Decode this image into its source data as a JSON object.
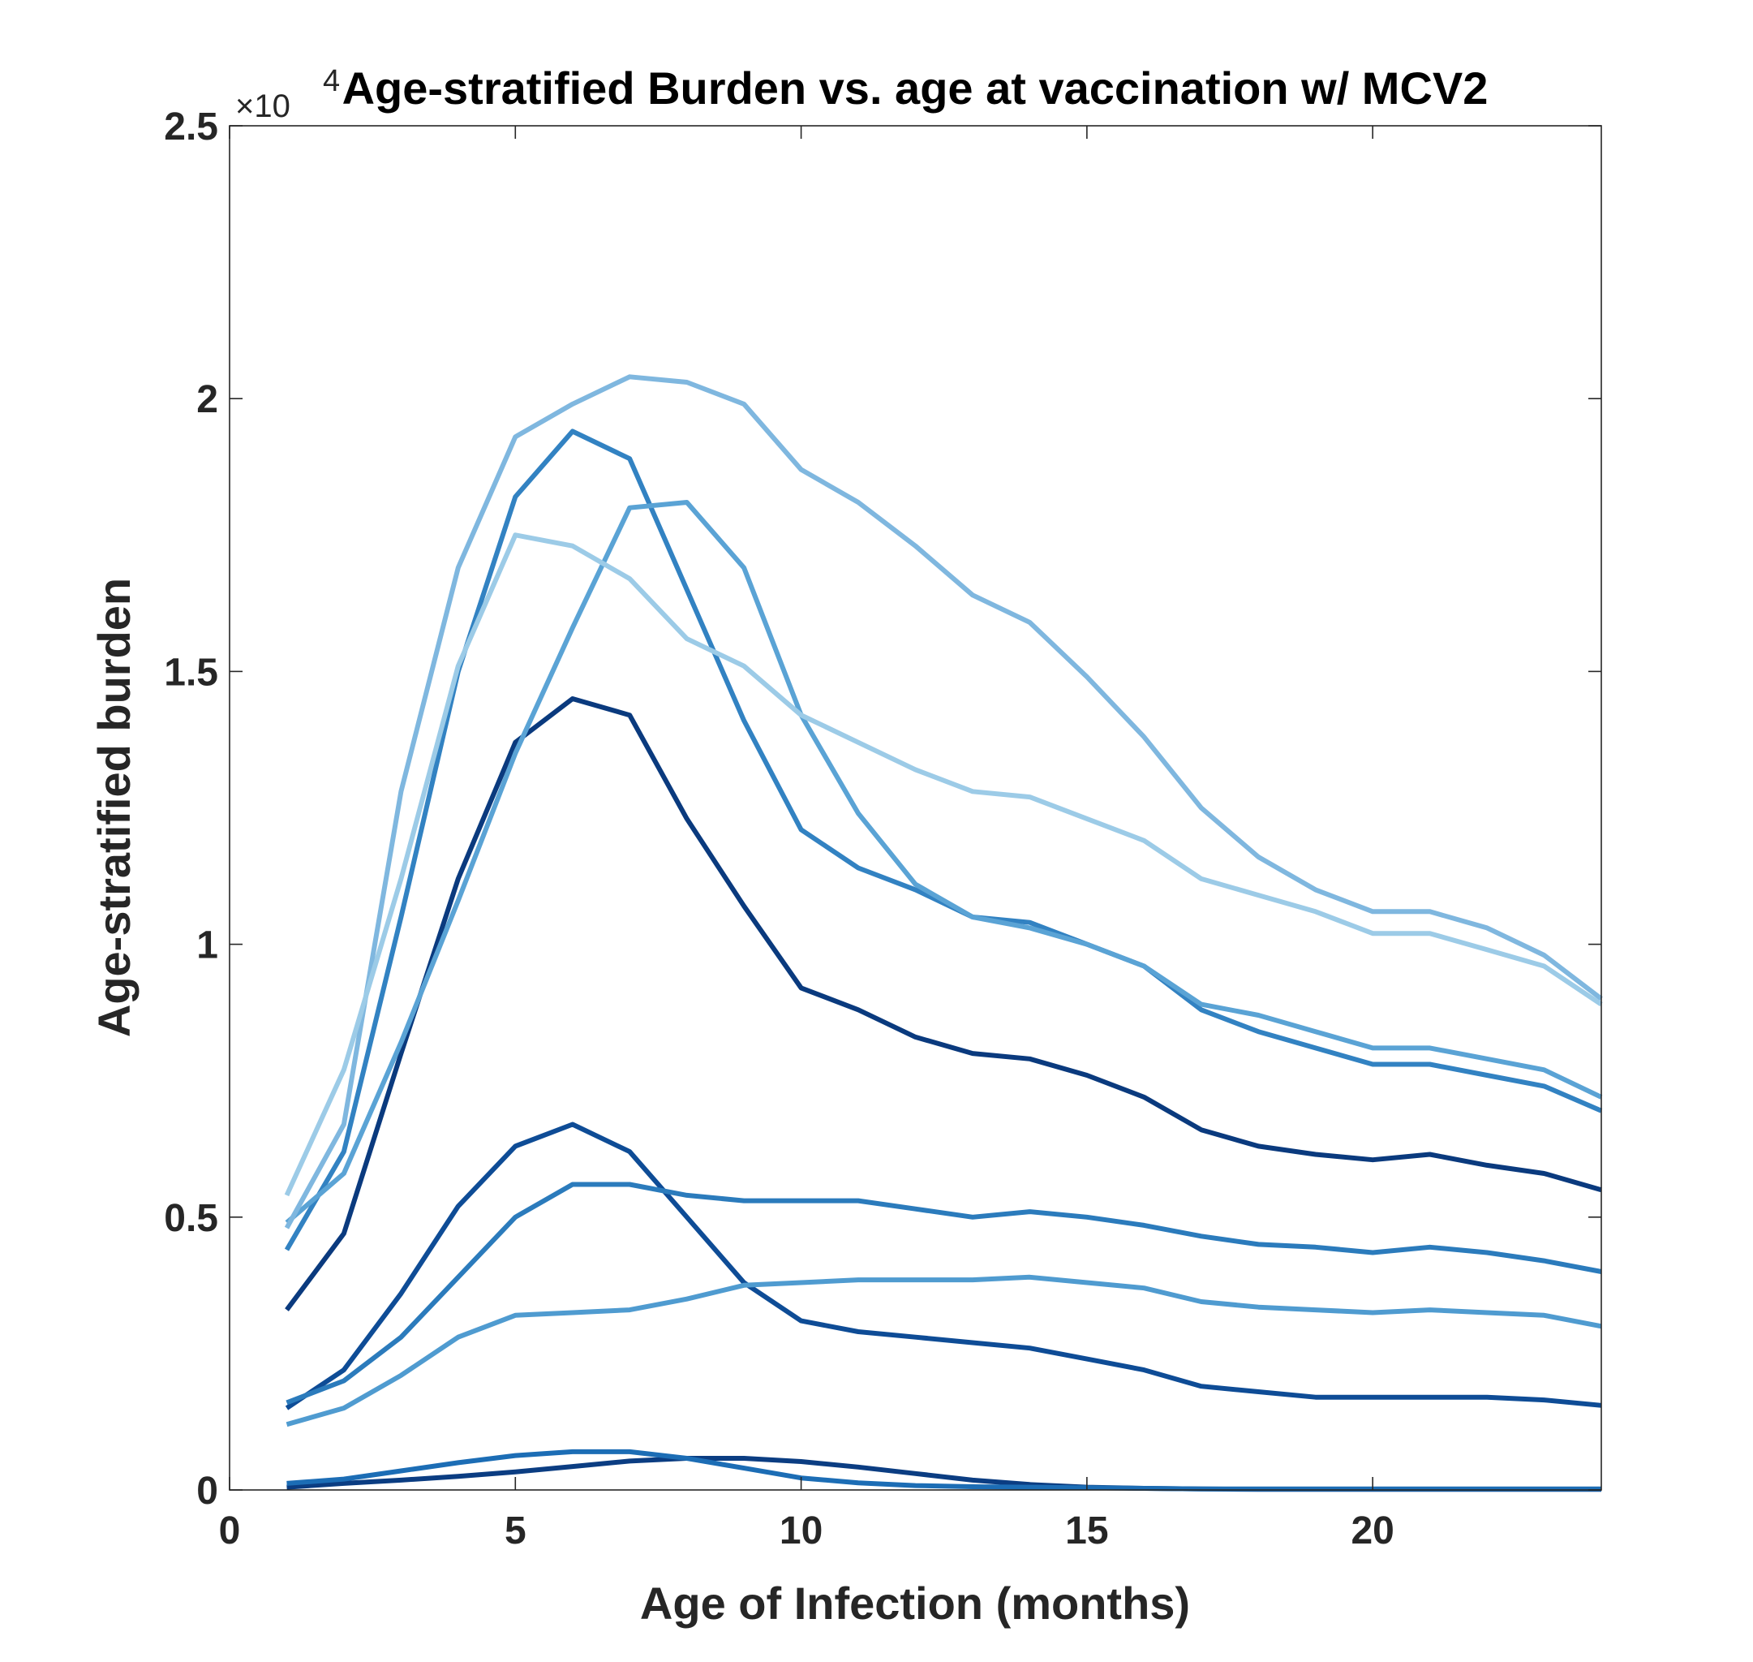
{
  "chart_data": {
    "type": "line",
    "title": "Age-stratified Burden vs. age at vaccination w/ MCV2",
    "xlabel": "Age of Infection (months)",
    "ylabel": "Age-stratified burden",
    "y_multiplier_label": {
      "base": "×10",
      "exponent": "4"
    },
    "xlim": [
      0,
      24
    ],
    "ylim": [
      0,
      2.5
    ],
    "xticks": [
      0,
      5,
      10,
      15,
      20
    ],
    "yticks": [
      0,
      0.5,
      1,
      1.5,
      2,
      2.5
    ],
    "xtick_labels": [
      "0",
      "5",
      "10",
      "15",
      "20"
    ],
    "ytick_labels": [
      "0",
      "0.5",
      "1",
      "1.5",
      "2",
      "2.5"
    ],
    "grid": false,
    "x": [
      1,
      2,
      3,
      4,
      5,
      6,
      7,
      8,
      9,
      10,
      11,
      12,
      13,
      14,
      15,
      16,
      17,
      18,
      19,
      20,
      21,
      22,
      23,
      24
    ],
    "series": [
      {
        "color": "#0b3d82",
        "values": [
          0.005,
          0.012,
          0.018,
          0.025,
          0.033,
          0.043,
          0.053,
          0.058,
          0.058,
          0.052,
          0.042,
          0.03,
          0.018,
          0.01,
          0.005,
          0.003,
          0.002,
          0.001,
          0.001,
          0.001,
          0.001,
          0.001,
          0.001,
          0.001
        ]
      },
      {
        "color": "#1c6db5",
        "values": [
          0.012,
          0.02,
          0.035,
          0.05,
          0.063,
          0.07,
          0.07,
          0.058,
          0.04,
          0.022,
          0.013,
          0.008,
          0.006,
          0.005,
          0.004,
          0.003,
          0.002,
          0.002,
          0.002,
          0.002,
          0.002,
          0.002,
          0.002,
          0.002
        ]
      },
      {
        "color": "#0e4c96",
        "values": [
          0.15,
          0.22,
          0.36,
          0.52,
          0.63,
          0.67,
          0.62,
          0.5,
          0.38,
          0.31,
          0.29,
          0.28,
          0.27,
          0.26,
          0.24,
          0.22,
          0.19,
          0.18,
          0.17,
          0.17,
          0.17,
          0.17,
          0.165,
          0.155
        ]
      },
      {
        "color": "#2b7bbc",
        "values": [
          0.16,
          0.2,
          0.28,
          0.39,
          0.5,
          0.56,
          0.56,
          0.54,
          0.53,
          0.53,
          0.53,
          0.515,
          0.5,
          0.51,
          0.5,
          0.485,
          0.465,
          0.45,
          0.445,
          0.435,
          0.445,
          0.435,
          0.42,
          0.4
        ]
      },
      {
        "color": "#4f9bd0",
        "values": [
          0.12,
          0.15,
          0.21,
          0.28,
          0.32,
          0.325,
          0.33,
          0.35,
          0.375,
          0.38,
          0.385,
          0.385,
          0.385,
          0.39,
          0.38,
          0.37,
          0.345,
          0.335,
          0.33,
          0.325,
          0.33,
          0.325,
          0.32,
          0.3
        ]
      },
      {
        "color": "#0a3a7e",
        "values": [
          0.33,
          0.47,
          0.8,
          1.12,
          1.37,
          1.45,
          1.42,
          1.23,
          1.07,
          0.92,
          0.88,
          0.83,
          0.8,
          0.79,
          0.76,
          0.72,
          0.66,
          0.63,
          0.615,
          0.605,
          0.615,
          0.595,
          0.58,
          0.55
        ]
      },
      {
        "color": "#3282c2",
        "values": [
          0.44,
          0.62,
          1.05,
          1.5,
          1.82,
          1.94,
          1.89,
          1.65,
          1.41,
          1.21,
          1.14,
          1.1,
          1.05,
          1.04,
          1.0,
          0.96,
          0.88,
          0.84,
          0.81,
          0.78,
          0.78,
          0.76,
          0.74,
          0.695
        ]
      },
      {
        "color": "#5aa3d5",
        "values": [
          0.49,
          0.58,
          0.82,
          1.08,
          1.35,
          1.58,
          1.8,
          1.81,
          1.69,
          1.42,
          1.24,
          1.11,
          1.05,
          1.03,
          1.0,
          0.96,
          0.89,
          0.87,
          0.84,
          0.81,
          0.81,
          0.79,
          0.77,
          0.72
        ]
      },
      {
        "color": "#7fb7df",
        "values": [
          0.48,
          0.67,
          1.28,
          1.69,
          1.93,
          1.99,
          2.04,
          2.03,
          1.99,
          1.87,
          1.81,
          1.73,
          1.64,
          1.59,
          1.49,
          1.38,
          1.25,
          1.16,
          1.1,
          1.06,
          1.06,
          1.03,
          0.98,
          0.9
        ]
      },
      {
        "color": "#9ccbe7",
        "values": [
          0.54,
          0.77,
          1.12,
          1.51,
          1.75,
          1.73,
          1.67,
          1.56,
          1.51,
          1.42,
          1.37,
          1.32,
          1.28,
          1.27,
          1.23,
          1.19,
          1.12,
          1.09,
          1.06,
          1.02,
          1.02,
          0.99,
          0.96,
          0.89
        ]
      }
    ]
  }
}
